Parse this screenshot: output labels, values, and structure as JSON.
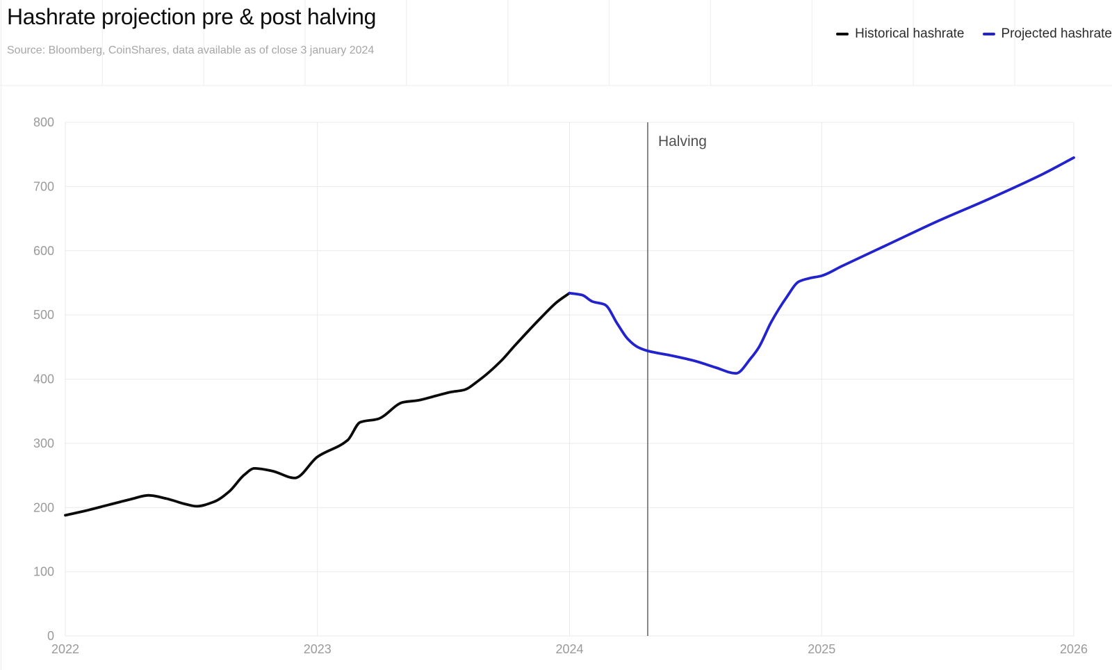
{
  "header": {
    "title": "Hashrate projection pre & post halving",
    "subtitle": "Source: Bloomberg, CoinShares, data available as of close 3 january 2024"
  },
  "legend": [
    {
      "label": "Historical hashrate",
      "color": "#0b0b0b"
    },
    {
      "label": "Projected hashrate",
      "color": "#2323ce"
    }
  ],
  "colors": {
    "historical_line": "#0b0b0b",
    "projected_line": "#2323ce",
    "gridline": "#e9e9e9",
    "header_gridline": "#ededed",
    "tick_label": "#9a9a9a",
    "halving_line": "#6a6a6a",
    "background": "#ffffff"
  },
  "chart_data": {
    "type": "line",
    "title": "Hashrate projection pre & post halving",
    "xlabel": "",
    "ylabel": "",
    "xlim": [
      2022,
      2026
    ],
    "ylim": [
      0,
      800
    ],
    "x_ticks": [
      2022,
      2023,
      2024,
      2025,
      2026
    ],
    "y_ticks": [
      0,
      100,
      200,
      300,
      400,
      500,
      600,
      700,
      800
    ],
    "grid": "horizontal-and-yearly-vertical",
    "legend_position": "top-right",
    "annotation": {
      "label": "Halving",
      "x": 2024.31
    },
    "series": [
      {
        "name": "Historical hashrate",
        "color": "#0b0b0b",
        "points": [
          [
            2022.0,
            188
          ],
          [
            2022.08,
            195
          ],
          [
            2022.17,
            204
          ],
          [
            2022.26,
            213
          ],
          [
            2022.33,
            219
          ],
          [
            2022.4,
            214
          ],
          [
            2022.48,
            205
          ],
          [
            2022.52,
            202
          ],
          [
            2022.59,
            209
          ],
          [
            2022.65,
            225
          ],
          [
            2022.71,
            251
          ],
          [
            2022.75,
            261
          ],
          [
            2022.82,
            257
          ],
          [
            2022.91,
            246
          ],
          [
            2023.0,
            279
          ],
          [
            2023.12,
            305
          ],
          [
            2023.17,
            333
          ],
          [
            2023.24,
            338
          ],
          [
            2023.34,
            364
          ],
          [
            2023.4,
            367
          ],
          [
            2023.47,
            374
          ],
          [
            2023.53,
            380
          ],
          [
            2023.58,
            383
          ],
          [
            2023.64,
            398
          ],
          [
            2023.73,
            429
          ],
          [
            2023.78,
            451
          ],
          [
            2023.89,
            497
          ],
          [
            2023.95,
            520
          ],
          [
            2024.0,
            534
          ]
        ]
      },
      {
        "name": "Projected hashrate",
        "color": "#2323ce",
        "points": [
          [
            2024.0,
            534
          ],
          [
            2024.05,
            531
          ],
          [
            2024.09,
            521
          ],
          [
            2024.14,
            516
          ],
          [
            2024.19,
            486
          ],
          [
            2024.23,
            463
          ],
          [
            2024.27,
            450
          ],
          [
            2024.31,
            444
          ],
          [
            2024.4,
            437
          ],
          [
            2024.5,
            428
          ],
          [
            2024.58,
            418
          ],
          [
            2024.66,
            409
          ],
          [
            2024.72,
            433
          ],
          [
            2024.75,
            449
          ],
          [
            2024.8,
            489
          ],
          [
            2024.86,
            527
          ],
          [
            2024.91,
            552
          ],
          [
            2024.95,
            557
          ],
          [
            2025.0,
            561
          ],
          [
            2025.08,
            576
          ],
          [
            2025.27,
            611
          ],
          [
            2025.46,
            646
          ],
          [
            2025.66,
            680
          ],
          [
            2025.88,
            720
          ],
          [
            2026.0,
            745
          ]
        ]
      }
    ]
  }
}
